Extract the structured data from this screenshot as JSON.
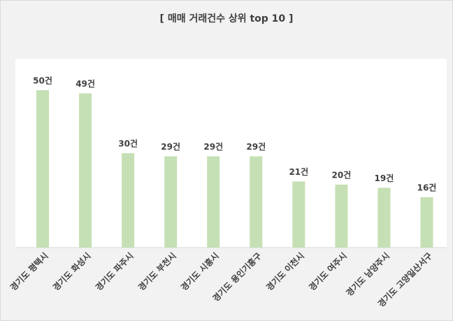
{
  "chart_data": {
    "type": "bar",
    "title": "[ 매매 거래건수 상위 top 10 ]",
    "categories": [
      "경기도 평택시",
      "경기도 화성시",
      "경기도 파주시",
      "경기도 부천시",
      "경기도 시흥시",
      "경기도 용인기흥구",
      "경기도 이천시",
      "경기도 여주시",
      "경기도 남양주시",
      "경기도 고양일산서구"
    ],
    "values": [
      50,
      49,
      30,
      29,
      29,
      29,
      21,
      20,
      19,
      16
    ],
    "value_labels": [
      "50건",
      "49건",
      "30건",
      "29건",
      "29건",
      "29건",
      "21건",
      "20건",
      "19건",
      "16건"
    ],
    "color": "#c5e0b4",
    "ylim": [
      0,
      60
    ]
  }
}
